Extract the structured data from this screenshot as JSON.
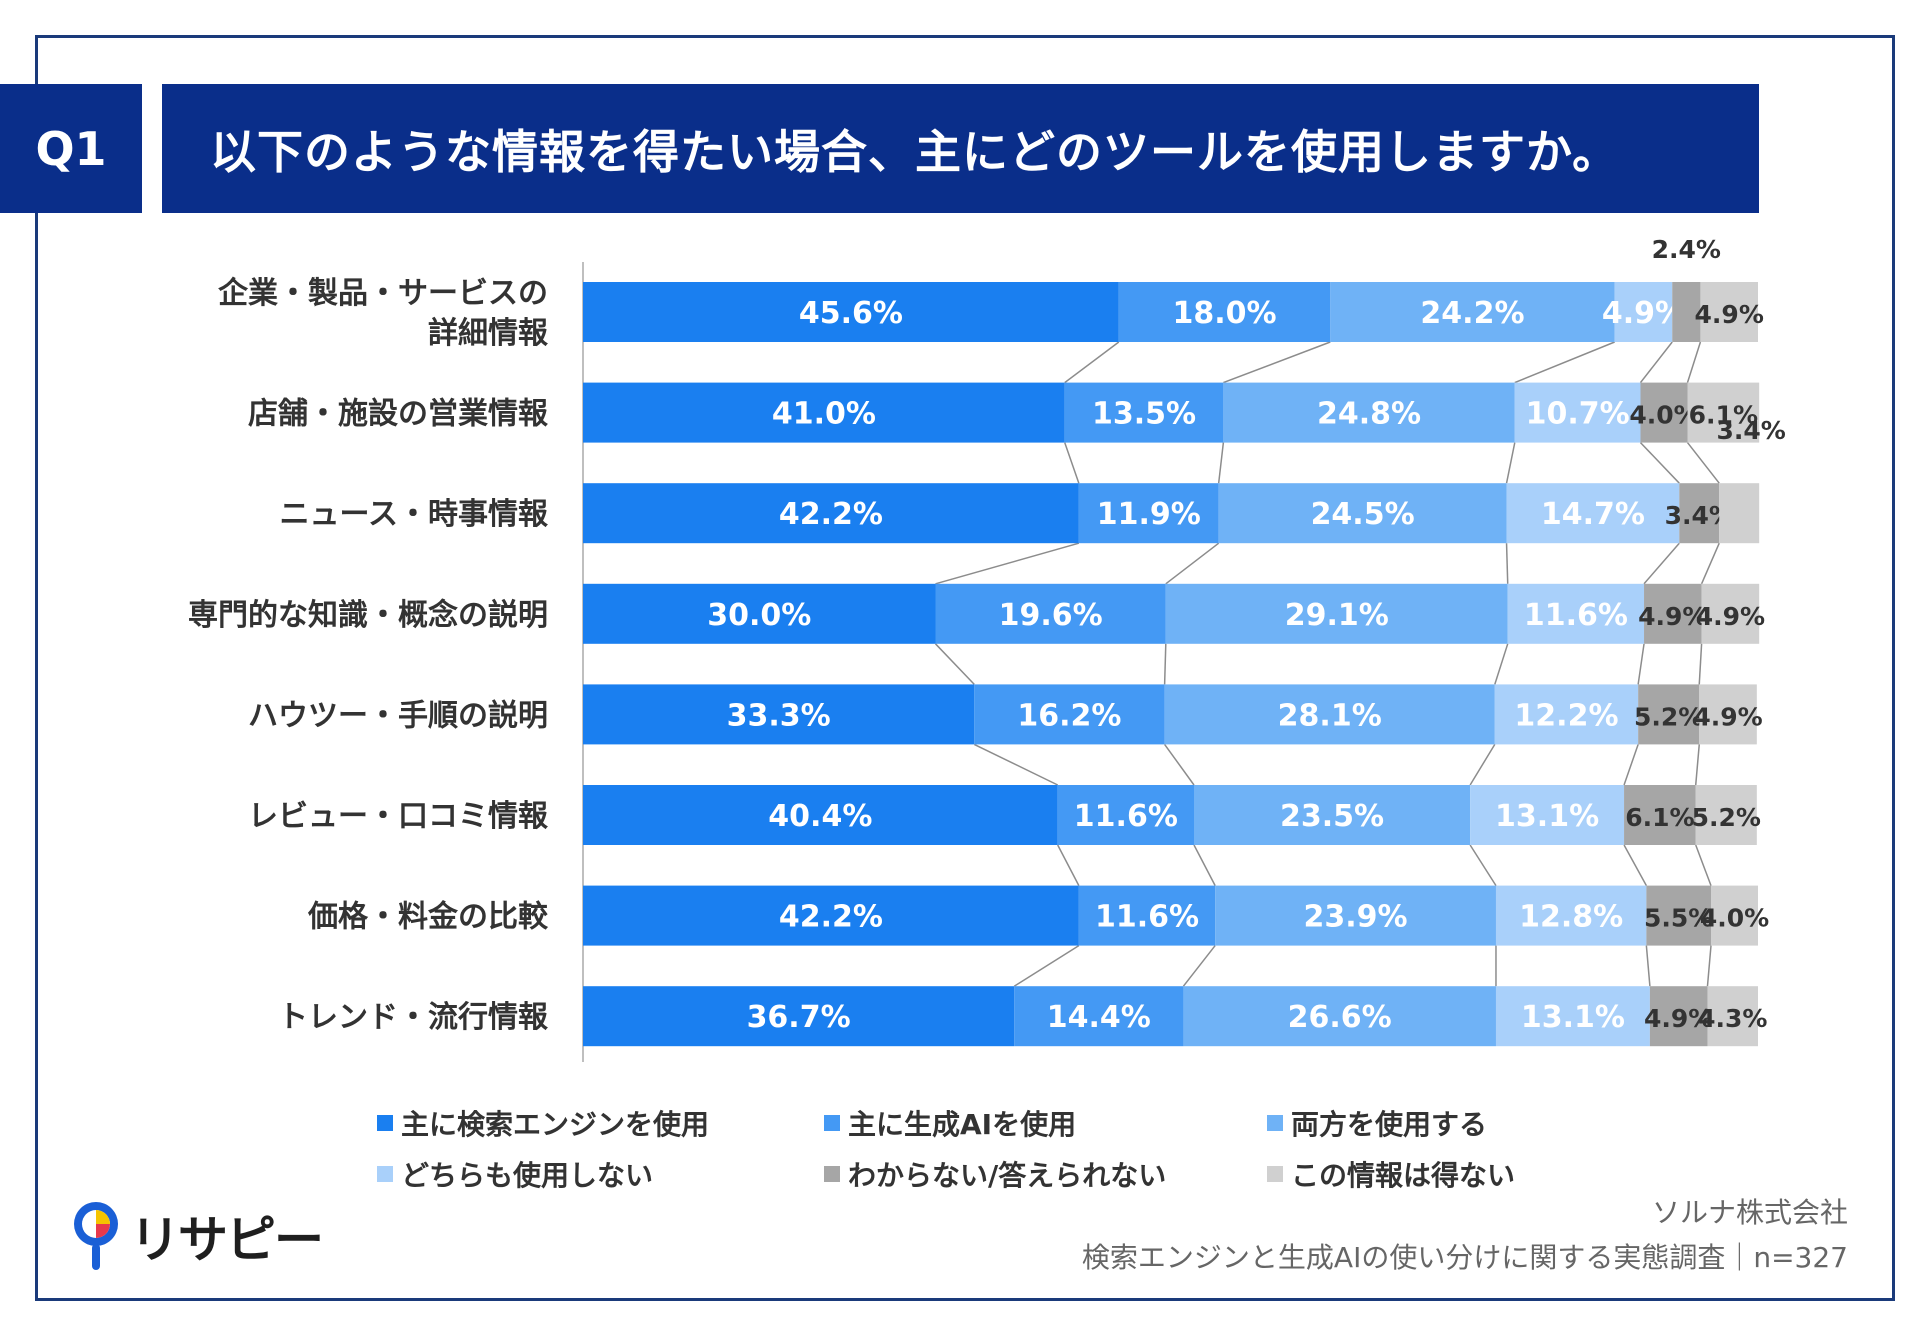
{
  "header": {
    "badge": "Q1",
    "question": "以下のような情報を得たい場合、主にどのツールを使用しますか。"
  },
  "chart_data": {
    "type": "bar",
    "orientation": "horizontal",
    "stacked": true,
    "percent": true,
    "categories": [
      "企業・製品・サービスの\n詳細情報",
      "店舗・施設の営業情報",
      "ニュース・時事情報",
      "専門的な知識・概念の説明",
      "ハウツー・手順の説明",
      "レビュー・口コミ情報",
      "価格・料金の比較",
      "トレンド・流行情報"
    ],
    "series": [
      {
        "name": "主に検索エンジンを使用",
        "color": "#1a7ff0",
        "values": [
          45.6,
          41.0,
          42.2,
          30.0,
          33.3,
          40.4,
          42.2,
          36.7
        ]
      },
      {
        "name": "主に生成AIを使用",
        "color": "#4499f4",
        "values": [
          18.0,
          13.5,
          11.9,
          19.6,
          16.2,
          11.6,
          11.6,
          14.4
        ]
      },
      {
        "name": "両方を使用する",
        "color": "#6fb2f6",
        "values": [
          24.2,
          24.8,
          24.5,
          29.1,
          28.1,
          23.5,
          23.9,
          26.6
        ]
      },
      {
        "name": "どちらも使用しない",
        "color": "#a9d0fa",
        "values": [
          4.9,
          10.7,
          14.7,
          11.6,
          12.2,
          13.1,
          12.8,
          13.1
        ]
      },
      {
        "name": "わからない/答えられない",
        "color": "#a6a6a6",
        "values": [
          2.4,
          4.0,
          3.4,
          4.9,
          5.2,
          6.1,
          5.5,
          4.9
        ]
      },
      {
        "name": "この情報は得ない",
        "color": "#d0d0d0",
        "values": [
          4.9,
          6.1,
          3.4,
          4.9,
          4.9,
          5.2,
          4.0,
          4.3
        ]
      }
    ],
    "value_labels": [
      [
        "45.6%",
        "18.0%",
        "24.2%",
        "4.9%",
        "2.4%",
        "4.9%"
      ],
      [
        "41.0%",
        "13.5%",
        "24.8%",
        "10.7%",
        "4.0%",
        "6.1%"
      ],
      [
        "42.2%",
        "11.9%",
        "24.5%",
        "14.7%",
        "3.4%",
        "3.4%"
      ],
      [
        "30.0%",
        "19.6%",
        "29.1%",
        "11.6%",
        "4.9%",
        "4.9%"
      ],
      [
        "33.3%",
        "16.2%",
        "28.1%",
        "12.2%",
        "5.2%",
        "4.9%"
      ],
      [
        "40.4%",
        "11.6%",
        "23.5%",
        "13.1%",
        "6.1%",
        "5.2%"
      ],
      [
        "42.2%",
        "11.6%",
        "23.9%",
        "12.8%",
        "5.5%",
        "4.0%"
      ],
      [
        "36.7%",
        "14.4%",
        "26.6%",
        "13.1%",
        "4.9%",
        "4.3%"
      ]
    ],
    "xlim": [
      0,
      100
    ],
    "series_lines": true,
    "legend": "bottom"
  },
  "logo": {
    "text": "リサピー"
  },
  "source": {
    "company": "ソルナ株式会社",
    "survey": "検索エンジンと生成AIの使い分けに関する実態調査｜n=327"
  }
}
